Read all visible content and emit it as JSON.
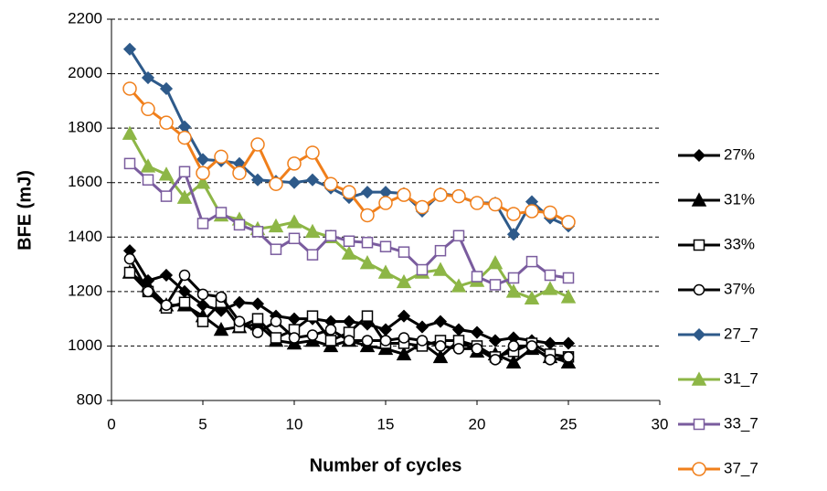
{
  "chart_data": {
    "type": "line",
    "x_label": "Number of cycles",
    "y_label": "BFE (mJ)",
    "x": [
      1,
      2,
      3,
      4,
      5,
      6,
      7,
      8,
      9,
      10,
      11,
      12,
      13,
      14,
      15,
      16,
      17,
      18,
      19,
      20,
      21,
      22,
      23,
      24,
      25
    ],
    "xlim": [
      0,
      30
    ],
    "xticks": [
      0,
      5,
      10,
      15,
      20,
      25,
      30
    ],
    "ylim": [
      800,
      2200
    ],
    "yticks": [
      800,
      1000,
      1200,
      1400,
      1600,
      1800,
      2000,
      2200
    ],
    "grid": true,
    "legend": "right",
    "series": [
      {
        "name": "27%",
        "color": "#000000",
        "marker": "diamond",
        "filled": true,
        "values": [
          1350,
          1240,
          1260,
          1200,
          1150,
          1130,
          1160,
          1155,
          1110,
          1100,
          1100,
          1090,
          1090,
          1080,
          1060,
          1110,
          1070,
          1090,
          1060,
          1050,
          1020,
          1030,
          1020,
          1010,
          1010
        ]
      },
      {
        "name": "31%",
        "color": "#000000",
        "marker": "triangle",
        "filled": true,
        "values": [
          1270,
          1220,
          1150,
          1150,
          1110,
          1060,
          1070,
          1080,
          1020,
          1010,
          1020,
          1000,
          1020,
          1000,
          990,
          970,
          1010,
          960,
          1020,
          980,
          970,
          940,
          990,
          960,
          940
        ]
      },
      {
        "name": "33%",
        "color": "#000000",
        "marker": "square",
        "filled": false,
        "values": [
          1270,
          1200,
          1140,
          1160,
          1090,
          1160,
          1070,
          1100,
          1030,
          1060,
          1110,
          1020,
          1050,
          1110,
          1010,
          1010,
          1000,
          1020,
          1020,
          1000,
          960,
          980,
          1010,
          970,
          960
        ]
      },
      {
        "name": "37%",
        "color": "#000000",
        "marker": "circle",
        "filled": false,
        "values": [
          1320,
          1200,
          1150,
          1260,
          1190,
          1180,
          1090,
          1050,
          1090,
          1030,
          1040,
          1060,
          1020,
          1020,
          1020,
          1030,
          1020,
          1000,
          990,
          990,
          950,
          1000,
          1000,
          950,
          960
        ]
      },
      {
        "name": "27_7",
        "color": "#2E5A8A",
        "marker": "diamond",
        "filled": true,
        "values": [
          2090,
          1985,
          1945,
          1805,
          1685,
          1680,
          1670,
          1610,
          1605,
          1600,
          1610,
          1580,
          1545,
          1565,
          1565,
          1560,
          1495,
          1560,
          1550,
          1525,
          1525,
          1410,
          1530,
          1470,
          1440
        ]
      },
      {
        "name": "31_7",
        "color": "#8DB646",
        "marker": "triangle",
        "filled": true,
        "values": [
          1780,
          1660,
          1630,
          1545,
          1600,
          1480,
          1465,
          1430,
          1440,
          1455,
          1420,
          1400,
          1340,
          1305,
          1270,
          1235,
          1270,
          1280,
          1220,
          1240,
          1305,
          1200,
          1175,
          1210,
          1180
        ]
      },
      {
        "name": "33_7",
        "color": "#7A5C9E",
        "marker": "square",
        "filled": false,
        "values": [
          1670,
          1610,
          1550,
          1640,
          1450,
          1490,
          1445,
          1420,
          1355,
          1395,
          1335,
          1405,
          1385,
          1380,
          1365,
          1345,
          1280,
          1350,
          1405,
          1255,
          1225,
          1250,
          1310,
          1260,
          1250
        ]
      },
      {
        "name": "37_7",
        "color": "#F07F1B",
        "marker": "circle",
        "filled": false,
        "values": [
          1945,
          1870,
          1820,
          1765,
          1635,
          1695,
          1635,
          1740,
          1595,
          1670,
          1710,
          1595,
          1565,
          1480,
          1525,
          1555,
          1510,
          1555,
          1550,
          1525,
          1520,
          1485,
          1495,
          1490,
          1455
        ]
      }
    ]
  }
}
